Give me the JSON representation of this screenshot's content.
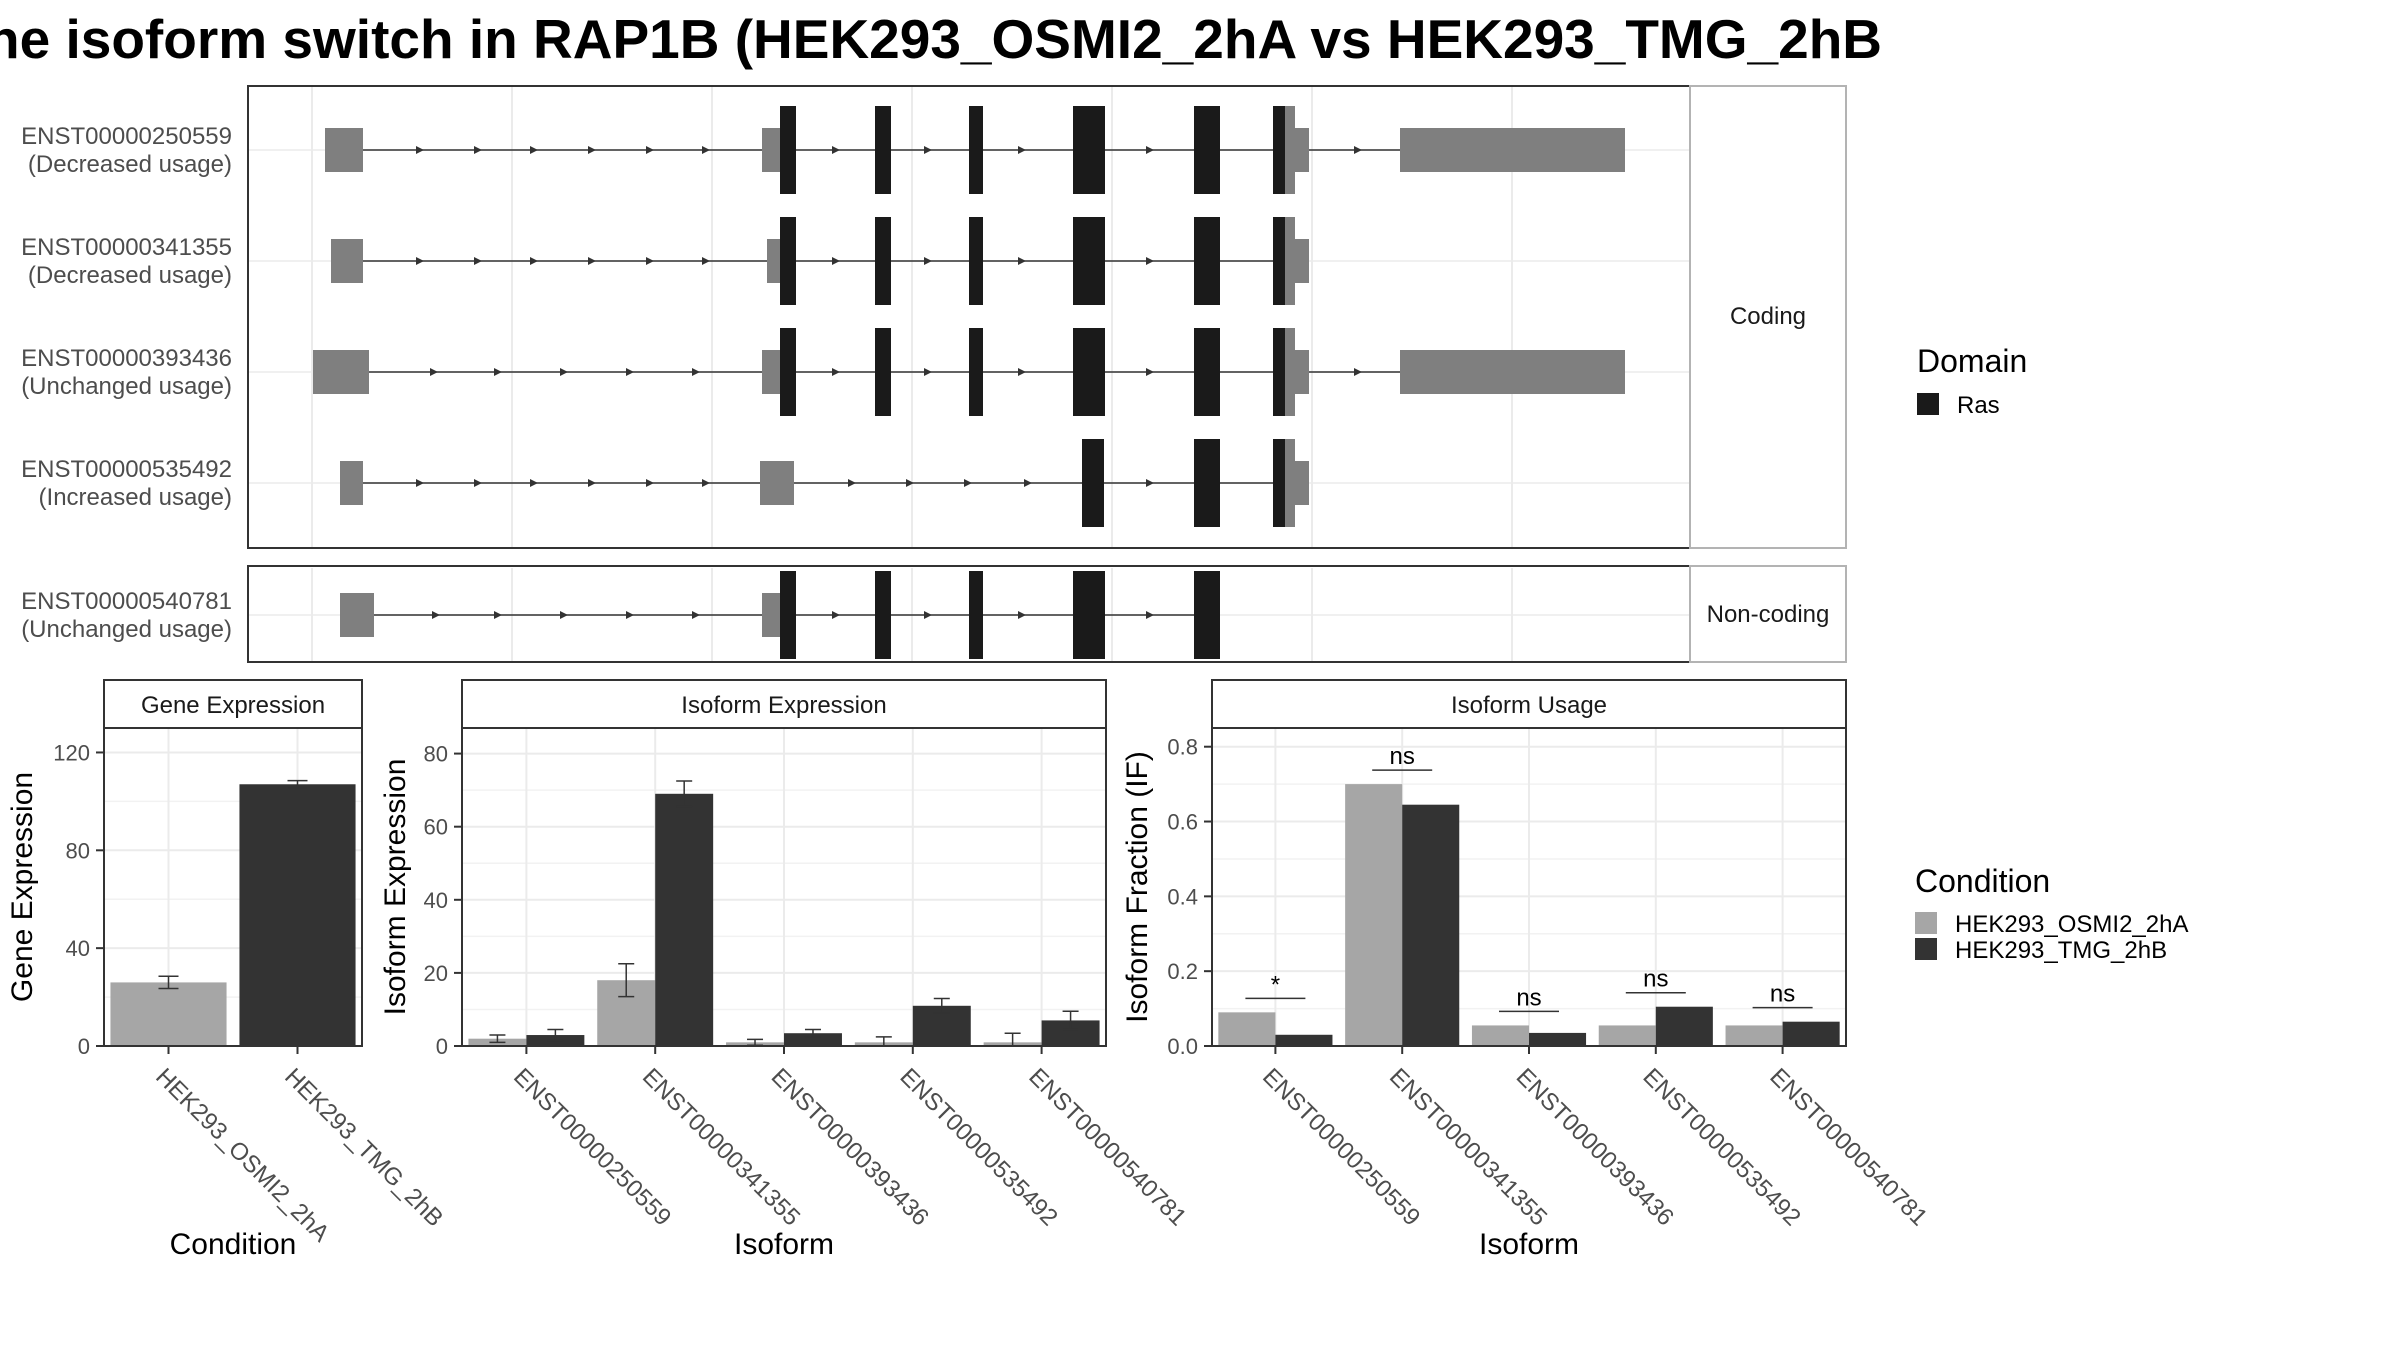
{
  "title": "he isoform switch in RAP1B (HEK293_OSMI2_2hA vs HEK293_TMG_2hB",
  "structure": {
    "coding_strip": "Coding",
    "noncoding_strip": "Non-coding",
    "isoforms": [
      {
        "id": "ENST00000250559",
        "usage": "(Decreased usage)"
      },
      {
        "id": "ENST00000341355",
        "usage": "(Decreased usage)"
      },
      {
        "id": "ENST00000393436",
        "usage": "(Unchanged usage)"
      },
      {
        "id": "ENST00000535492",
        "usage": "(Increased usage)"
      },
      {
        "id": "ENST00000540781",
        "usage": "(Unchanged usage)"
      }
    ]
  },
  "legends": {
    "domain": {
      "title": "Domain",
      "items": [
        {
          "label": "Ras",
          "color": "#1a1a1a"
        }
      ]
    },
    "condition": {
      "title": "Condition",
      "items": [
        {
          "label": "HEK293_OSMI2_2hA",
          "color": "#a6a6a6"
        },
        {
          "label": "HEK293_TMG_2hB",
          "color": "#333333"
        }
      ]
    }
  },
  "colors": {
    "condition_a": "#a6a6a6",
    "condition_b": "#333333",
    "domain": "#1a1a1a",
    "utr": "#7f7f7f"
  },
  "chart_data": [
    {
      "type": "bar",
      "title": "Gene Expression",
      "xlabel": "Condition",
      "ylabel": "Gene Expression",
      "ylim": [
        0,
        130
      ],
      "yticks": [
        0,
        40,
        80,
        120
      ],
      "categories": [
        "HEK293_OSMI2_2hA",
        "HEK293_TMG_2hB"
      ],
      "values": [
        26,
        107
      ],
      "errors": [
        2.5,
        1.5
      ],
      "grid": true
    },
    {
      "type": "bar",
      "title": "Isoform Expression",
      "xlabel": "Isoform",
      "ylabel": "Isoform Expression",
      "ylim": [
        0,
        87
      ],
      "yticks": [
        0,
        20,
        40,
        60,
        80
      ],
      "categories": [
        "ENST00000250559",
        "ENST00000341355",
        "ENST00000393436",
        "ENST00000535492",
        "ENST00000540781"
      ],
      "series": [
        {
          "name": "HEK293_OSMI2_2hA",
          "values": [
            2,
            18,
            1,
            1,
            1
          ],
          "errors": [
            1,
            4.5,
            0.8,
            1.5,
            2.5
          ]
        },
        {
          "name": "HEK293_TMG_2hB",
          "values": [
            3,
            69,
            3.5,
            11,
            7
          ],
          "errors": [
            1.5,
            3.5,
            1,
            2,
            2.5
          ]
        }
      ],
      "grid": true
    },
    {
      "type": "bar",
      "title": "Isoform Usage",
      "xlabel": "Isoform",
      "ylabel": "Isoform Fraction (IF)",
      "ylim": [
        0,
        0.85
      ],
      "yticks": [
        0.0,
        0.2,
        0.4,
        0.6,
        0.8
      ],
      "ytick_labels": [
        "0.0",
        "0.2",
        "0.4",
        "0.6",
        "0.8"
      ],
      "categories": [
        "ENST00000250559",
        "ENST00000341355",
        "ENST00000393436",
        "ENST00000535492",
        "ENST00000540781"
      ],
      "series": [
        {
          "name": "HEK293_OSMI2_2hA",
          "values": [
            0.09,
            0.7,
            0.055,
            0.055,
            0.055
          ]
        },
        {
          "name": "HEK293_TMG_2hB",
          "values": [
            0.03,
            0.645,
            0.035,
            0.105,
            0.065
          ]
        }
      ],
      "significance": [
        "*",
        "ns",
        "ns",
        "ns",
        "ns"
      ],
      "grid": true
    }
  ]
}
